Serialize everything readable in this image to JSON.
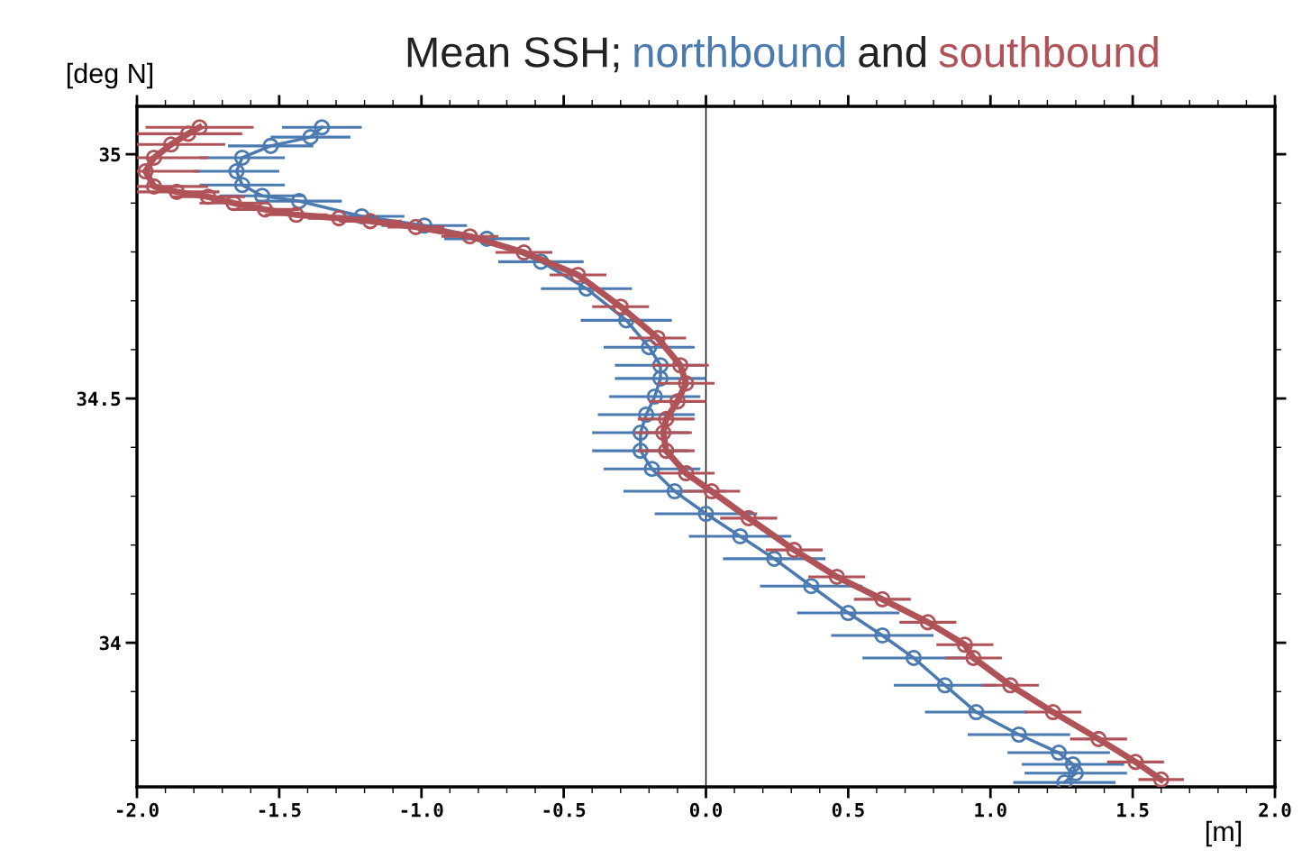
{
  "chart_data": {
    "type": "line",
    "title": "Mean SSH;",
    "annotations": [
      "and"
    ],
    "xlabel": "[m]",
    "ylabel": "[deg N]",
    "xlim": [
      -2,
      2
    ],
    "ylim": [
      33.705,
      35.098
    ],
    "xticks": [
      {
        "value": -2,
        "label": "-2.0"
      },
      {
        "value": -1.9,
        "label": null
      },
      {
        "value": -1.8,
        "label": null
      },
      {
        "value": -1.7,
        "label": null
      },
      {
        "value": -1.6,
        "label": null
      },
      {
        "value": -1.5,
        "label": "-1.5"
      },
      {
        "value": -1.4,
        "label": null
      },
      {
        "value": -1.3,
        "label": null
      },
      {
        "value": -1.2,
        "label": null
      },
      {
        "value": -1.1,
        "label": null
      },
      {
        "value": -1,
        "label": "-1.0"
      },
      {
        "value": -0.9,
        "label": null
      },
      {
        "value": -0.8,
        "label": null
      },
      {
        "value": -0.7,
        "label": null
      },
      {
        "value": -0.6,
        "label": null
      },
      {
        "value": -0.5,
        "label": "-0.5"
      },
      {
        "value": -0.4,
        "label": null
      },
      {
        "value": -0.3,
        "label": null
      },
      {
        "value": -0.2,
        "label": null
      },
      {
        "value": -0.1,
        "label": null
      },
      {
        "value": 0,
        "label": "0.0"
      },
      {
        "value": 0.1,
        "label": null
      },
      {
        "value": 0.2,
        "label": null
      },
      {
        "value": 0.3,
        "label": null
      },
      {
        "value": 0.4,
        "label": null
      },
      {
        "value": 0.5,
        "label": "0.5"
      },
      {
        "value": 0.6,
        "label": null
      },
      {
        "value": 0.7,
        "label": null
      },
      {
        "value": 0.8,
        "label": null
      },
      {
        "value": 0.9,
        "label": null
      },
      {
        "value": 1,
        "label": "1.0"
      },
      {
        "value": 1.1,
        "label": null
      },
      {
        "value": 1.2,
        "label": null
      },
      {
        "value": 1.3,
        "label": null
      },
      {
        "value": 1.4,
        "label": null
      },
      {
        "value": 1.5,
        "label": "1.5"
      },
      {
        "value": 1.6,
        "label": null
      },
      {
        "value": 1.7,
        "label": null
      },
      {
        "value": 1.8,
        "label": null
      },
      {
        "value": 1.9,
        "label": null
      },
      {
        "value": 2,
        "label": "2.0"
      }
    ],
    "yticks": [
      {
        "value": 33.8,
        "label": null
      },
      {
        "value": 33.9,
        "label": null
      },
      34,
      {
        "value": 34.1,
        "label": null
      },
      {
        "value": 34.2,
        "label": null
      },
      {
        "value": 34.3,
        "label": null
      },
      {
        "value": 34.4,
        "label": null
      },
      34.5,
      {
        "value": 34.6,
        "label": null
      },
      {
        "value": 34.7,
        "label": null
      },
      {
        "value": 34.8,
        "label": null
      },
      {
        "value": 34.9,
        "label": null
      },
      35
    ],
    "ref_lines": [
      {
        "axis": "x",
        "value": 0,
        "color": "#000000"
      }
    ],
    "marker": "circle",
    "grid": false,
    "legend": false,
    "series": [
      {
        "name": "northbound",
        "color": "#4a7ab0",
        "x": [
          -1.35,
          -1.39,
          -1.53,
          -1.63,
          -1.65,
          -1.63,
          -1.56,
          -1.43,
          -1.21,
          -0.99,
          -0.77,
          -0.58,
          -0.42,
          -0.28,
          -0.2,
          -0.16,
          -0.16,
          -0.18,
          -0.21,
          -0.23,
          -0.23,
          -0.19,
          -0.11,
          0.0,
          0.12,
          0.24,
          0.37,
          0.5,
          0.62,
          0.73,
          0.84,
          0.95,
          1.1,
          1.24,
          1.29,
          1.3,
          1.26
        ],
        "values": [
          35.055,
          35.035,
          35.017,
          34.993,
          34.965,
          34.937,
          34.915,
          34.904,
          34.873,
          34.854,
          34.827,
          34.78,
          34.725,
          34.66,
          34.605,
          34.568,
          34.541,
          34.504,
          34.467,
          34.43,
          34.393,
          34.356,
          34.31,
          34.264,
          34.218,
          34.172,
          34.116,
          34.061,
          34.015,
          33.969,
          33.913,
          33.858,
          33.812,
          33.775,
          33.751,
          33.733,
          33.714
        ],
        "xerrors": [
          0.14,
          0.14,
          0.15,
          0.15,
          0.15,
          0.15,
          0.15,
          0.15,
          0.15,
          0.15,
          0.15,
          0.15,
          0.16,
          0.16,
          0.16,
          0.16,
          0.16,
          0.16,
          0.17,
          0.17,
          0.17,
          0.17,
          0.18,
          0.18,
          0.18,
          0.18,
          0.18,
          0.18,
          0.18,
          0.18,
          0.18,
          0.18,
          0.18,
          0.18,
          0.18,
          0.18,
          0.18
        ]
      },
      {
        "name": "southbound",
        "color": "#b05358",
        "x": [
          -1.78,
          -1.82,
          -1.88,
          -1.94,
          -1.97,
          -1.94,
          -1.86,
          -1.75,
          -1.66,
          -1.55,
          -1.44,
          -1.29,
          -1.18,
          -1.02,
          -0.83,
          -0.64,
          -0.45,
          -0.3,
          -0.17,
          -0.09,
          -0.07,
          -0.1,
          -0.14,
          -0.15,
          -0.14,
          -0.07,
          0.02,
          0.15,
          0.31,
          0.46,
          0.62,
          0.78,
          0.91,
          0.94,
          1.07,
          1.22,
          1.38,
          1.51,
          1.6
        ],
        "values": [
          35.055,
          35.042,
          35.02,
          34.993,
          34.965,
          34.934,
          34.923,
          34.913,
          34.9,
          34.887,
          34.876,
          34.869,
          34.863,
          34.851,
          34.832,
          34.799,
          34.753,
          34.688,
          34.624,
          34.568,
          34.531,
          34.494,
          34.458,
          34.43,
          34.393,
          34.347,
          34.31,
          34.255,
          34.19,
          34.135,
          34.089,
          34.042,
          33.996,
          33.969,
          33.913,
          33.858,
          33.803,
          33.756,
          33.72
        ],
        "xerrors": [
          0.19,
          0.19,
          0.19,
          0.19,
          0.19,
          0.19,
          0.15,
          0.13,
          0.12,
          0.12,
          0.11,
          0.11,
          0.11,
          0.1,
          0.1,
          0.1,
          0.1,
          0.1,
          0.1,
          0.1,
          0.1,
          0.1,
          0.1,
          0.1,
          0.1,
          0.1,
          0.1,
          0.1,
          0.1,
          0.1,
          0.1,
          0.1,
          0.1,
          0.1,
          0.1,
          0.1,
          0.1,
          0.1,
          0.08
        ]
      }
    ]
  }
}
